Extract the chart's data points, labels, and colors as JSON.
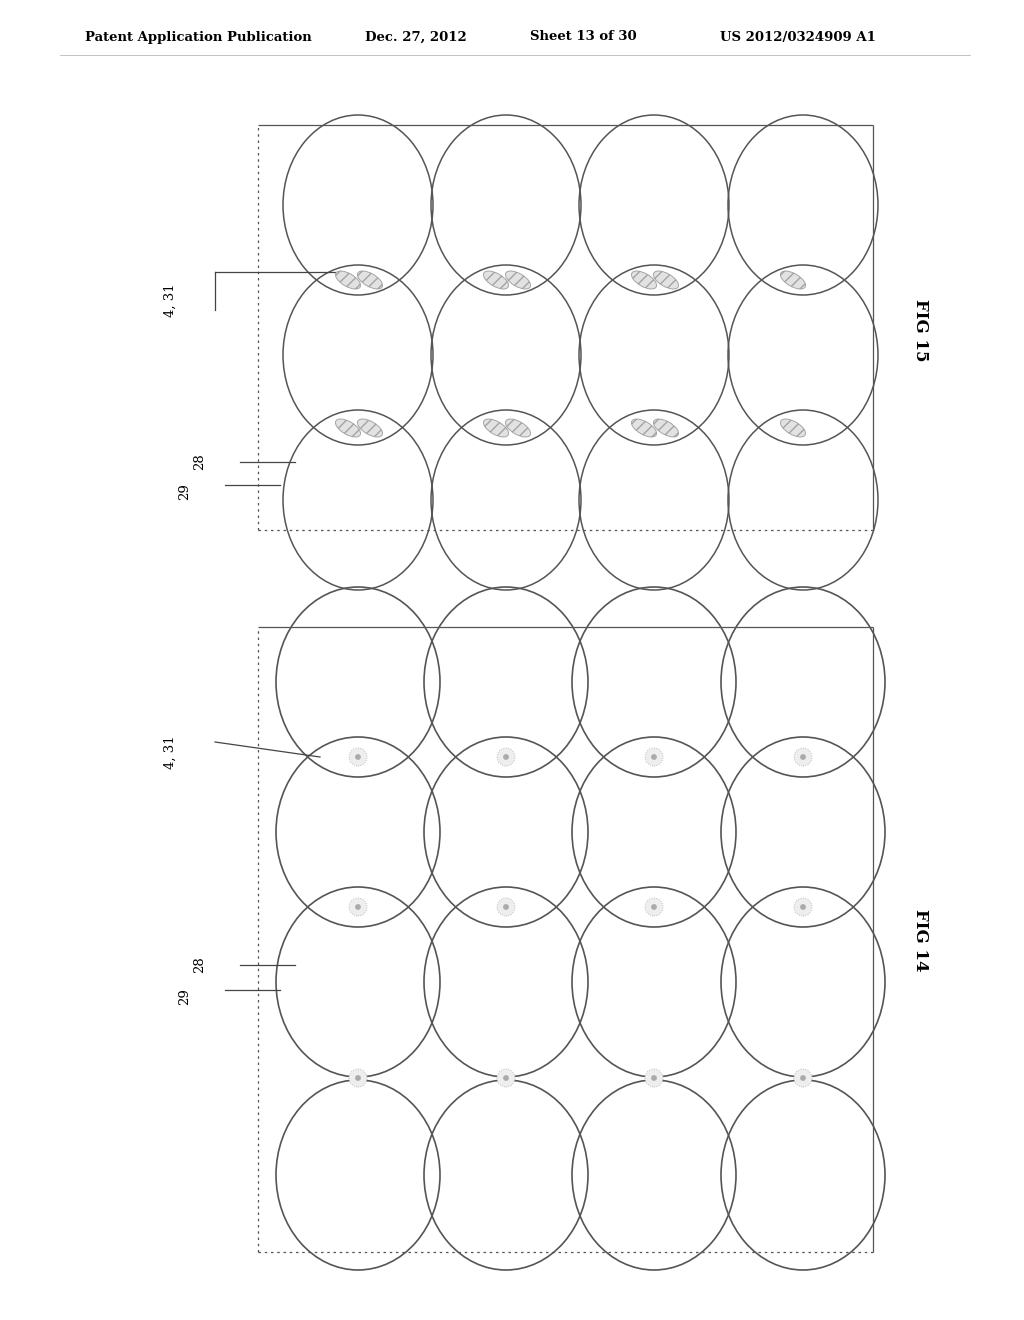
{
  "bg_color": "#ffffff",
  "header_text": "Patent Application Publication",
  "header_date": "Dec. 27, 2012",
  "header_sheet": "Sheet 13 of 30",
  "header_patent": "US 2012/0324909 A1",
  "fig1_label": "FIG 15",
  "fig2_label": "FIG 14",
  "label_431": "4, 31",
  "label_28": "28",
  "label_29": "29",
  "line_color": "#444444",
  "circle_color": "#555555",
  "turb_color": "#999999",
  "header_fontsize": 10
}
